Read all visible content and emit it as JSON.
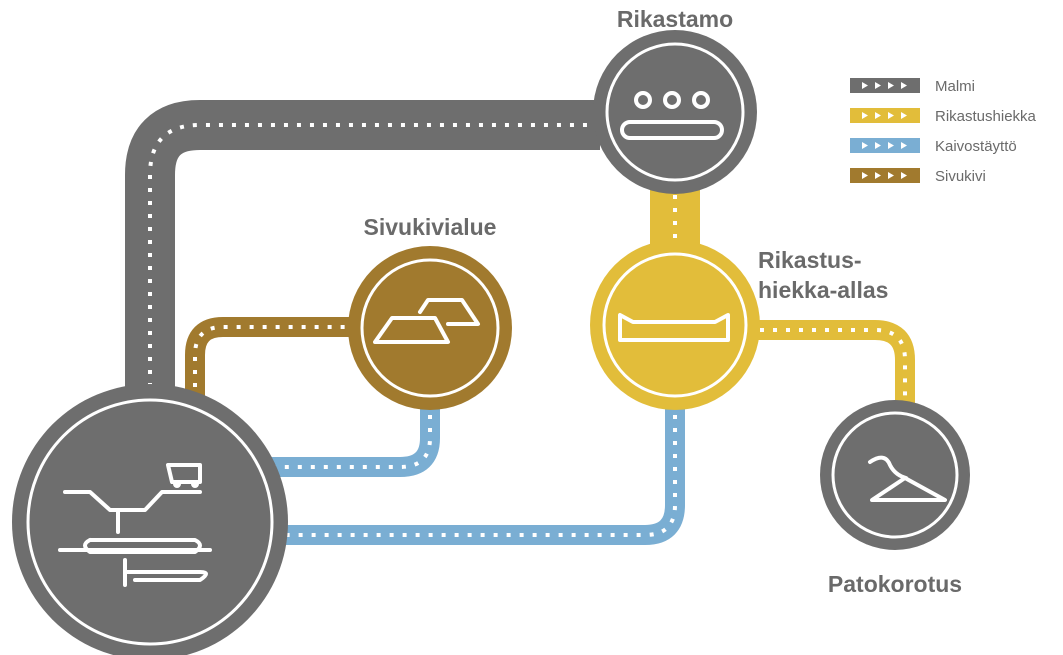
{
  "nodes": [
    {
      "label": "Rikastamo"
    },
    {
      "label": "Sivukivialue"
    },
    {
      "label": [
        "Rikastus-",
        "hiekka-allas"
      ]
    },
    {
      "label": "Patokorotus"
    }
  ],
  "legend": [
    {
      "name": "Malmi",
      "color": "#6e6e6e"
    },
    {
      "name": "Rikastushiekka",
      "color": "#e2bd3a"
    },
    {
      "name": "Kaivostäyttö",
      "color": "#7aaed3"
    },
    {
      "name": "Sivukivi",
      "color": "#a17a2e"
    }
  ]
}
